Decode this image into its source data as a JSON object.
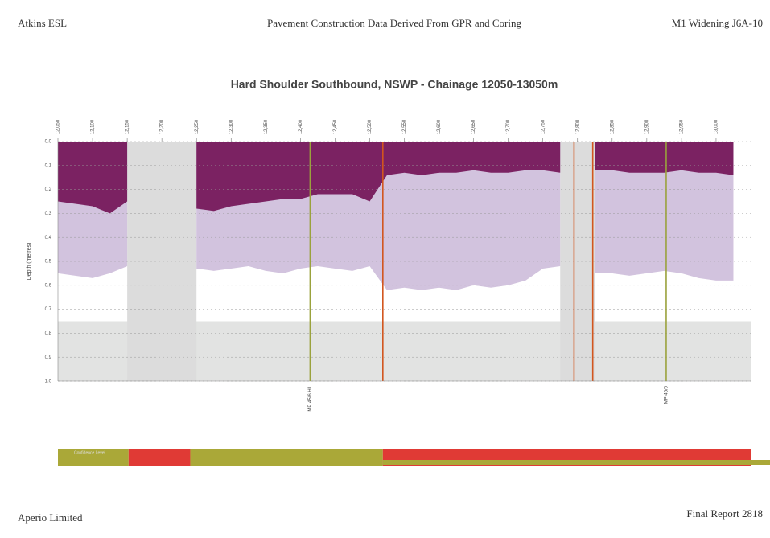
{
  "header": {
    "left": "Atkins ESL",
    "center": "Pavement Construction Data Derived From GPR and Coring",
    "right": "M1 Widening J6A-10"
  },
  "footer": {
    "left": "Aperio Limited",
    "right": "Final Report 2818"
  },
  "chart_data": {
    "type": "area",
    "title": "Hard Shoulder Southbound, NSWP - Chainage 12050-13050m",
    "y_label": "Depth (metres)",
    "xlim": [
      12050,
      13050
    ],
    "ylim": [
      0,
      1
    ],
    "y_inverted": true,
    "xticks": [
      {
        "value": 12050,
        "label": "12,050"
      },
      {
        "value": 12100,
        "label": "12,100"
      },
      {
        "value": 12150,
        "label": "12,150"
      },
      {
        "value": 12200,
        "label": "12,200"
      },
      {
        "value": 12250,
        "label": "12,250"
      },
      {
        "value": 12300,
        "label": "12,300"
      },
      {
        "value": 12350,
        "label": "12,350"
      },
      {
        "value": 12400,
        "label": "12,400"
      },
      {
        "value": 12450,
        "label": "12,450"
      },
      {
        "value": 12500,
        "label": "12,500"
      },
      {
        "value": 12550,
        "label": "12,550"
      },
      {
        "value": 12600,
        "label": "12,600"
      },
      {
        "value": 12650,
        "label": "12,650"
      },
      {
        "value": 12700,
        "label": "12,700"
      },
      {
        "value": 12750,
        "label": "12,750"
      },
      {
        "value": 12800,
        "label": "12,800"
      },
      {
        "value": 12850,
        "label": "12,850"
      },
      {
        "value": 12900,
        "label": "12,900"
      },
      {
        "value": 12950,
        "label": "12,950"
      },
      {
        "value": 13000,
        "label": "13,000"
      }
    ],
    "yticks": [
      {
        "value": 0,
        "label": "0.0"
      },
      0.1,
      0.2,
      0.3,
      0.4,
      0.5,
      0.6,
      0.7,
      0.8,
      0.9,
      {
        "value": 1,
        "label": "1.0"
      }
    ],
    "grid": true,
    "x": [
      12050,
      12075,
      12100,
      12125,
      12150,
      12175,
      12200,
      12225,
      12250,
      12275,
      12300,
      12325,
      12350,
      12375,
      12400,
      12425,
      12450,
      12475,
      12500,
      12525,
      12550,
      12575,
      12600,
      12625,
      12650,
      12675,
      12700,
      12725,
      12750,
      12775,
      12800,
      12825,
      12850,
      12875,
      12900,
      12925,
      12950,
      12975,
      13000,
      13025
    ],
    "series": [
      {
        "color": "#d2c3de",
        "values": [
          0.55,
          0.56,
          0.57,
          0.55,
          0.52,
          null,
          null,
          null,
          0.53,
          0.54,
          0.53,
          0.52,
          0.54,
          0.55,
          0.53,
          0.52,
          0.53,
          0.54,
          0.52,
          0.62,
          0.61,
          0.62,
          0.61,
          0.62,
          0.6,
          0.61,
          0.6,
          0.58,
          0.53,
          0.52,
          null,
          0.55,
          0.55,
          0.56,
          0.55,
          0.54,
          0.55,
          0.57,
          0.58,
          0.58
        ]
      },
      {
        "color": "#7b2262",
        "values": [
          0.25,
          0.26,
          0.27,
          0.3,
          0.25,
          null,
          null,
          null,
          0.28,
          0.29,
          0.27,
          0.26,
          0.25,
          0.24,
          0.24,
          0.22,
          0.22,
          0.22,
          0.25,
          0.14,
          0.13,
          0.14,
          0.13,
          0.13,
          0.12,
          0.13,
          0.13,
          0.12,
          0.12,
          0.13,
          null,
          0.12,
          0.12,
          0.13,
          0.13,
          0.13,
          0.12,
          0.13,
          0.13,
          0.14
        ]
      }
    ],
    "markers": [
      {
        "x": 12414,
        "color": "#9aa23c",
        "label": "MP 45/6 H1"
      },
      {
        "x": 12519,
        "color": "#d2561e"
      },
      {
        "x": 12795,
        "color": "#d2561e"
      },
      {
        "x": 12822,
        "color": "#d2561e"
      },
      {
        "x": 12928,
        "color": "#9aa23c",
        "label": "MP 46/0"
      }
    ],
    "confidence": {
      "label": "Confidence Level",
      "segments": [
        {
          "start": 12050,
          "end": 12152,
          "color": "#aaa838"
        },
        {
          "start": 12152,
          "end": 12241,
          "color": "#e03a35"
        },
        {
          "start": 12241,
          "end": 12519,
          "color": "#aaa838"
        },
        {
          "start": 12519,
          "end": 13050,
          "color": "#e03a35"
        }
      ]
    }
  }
}
